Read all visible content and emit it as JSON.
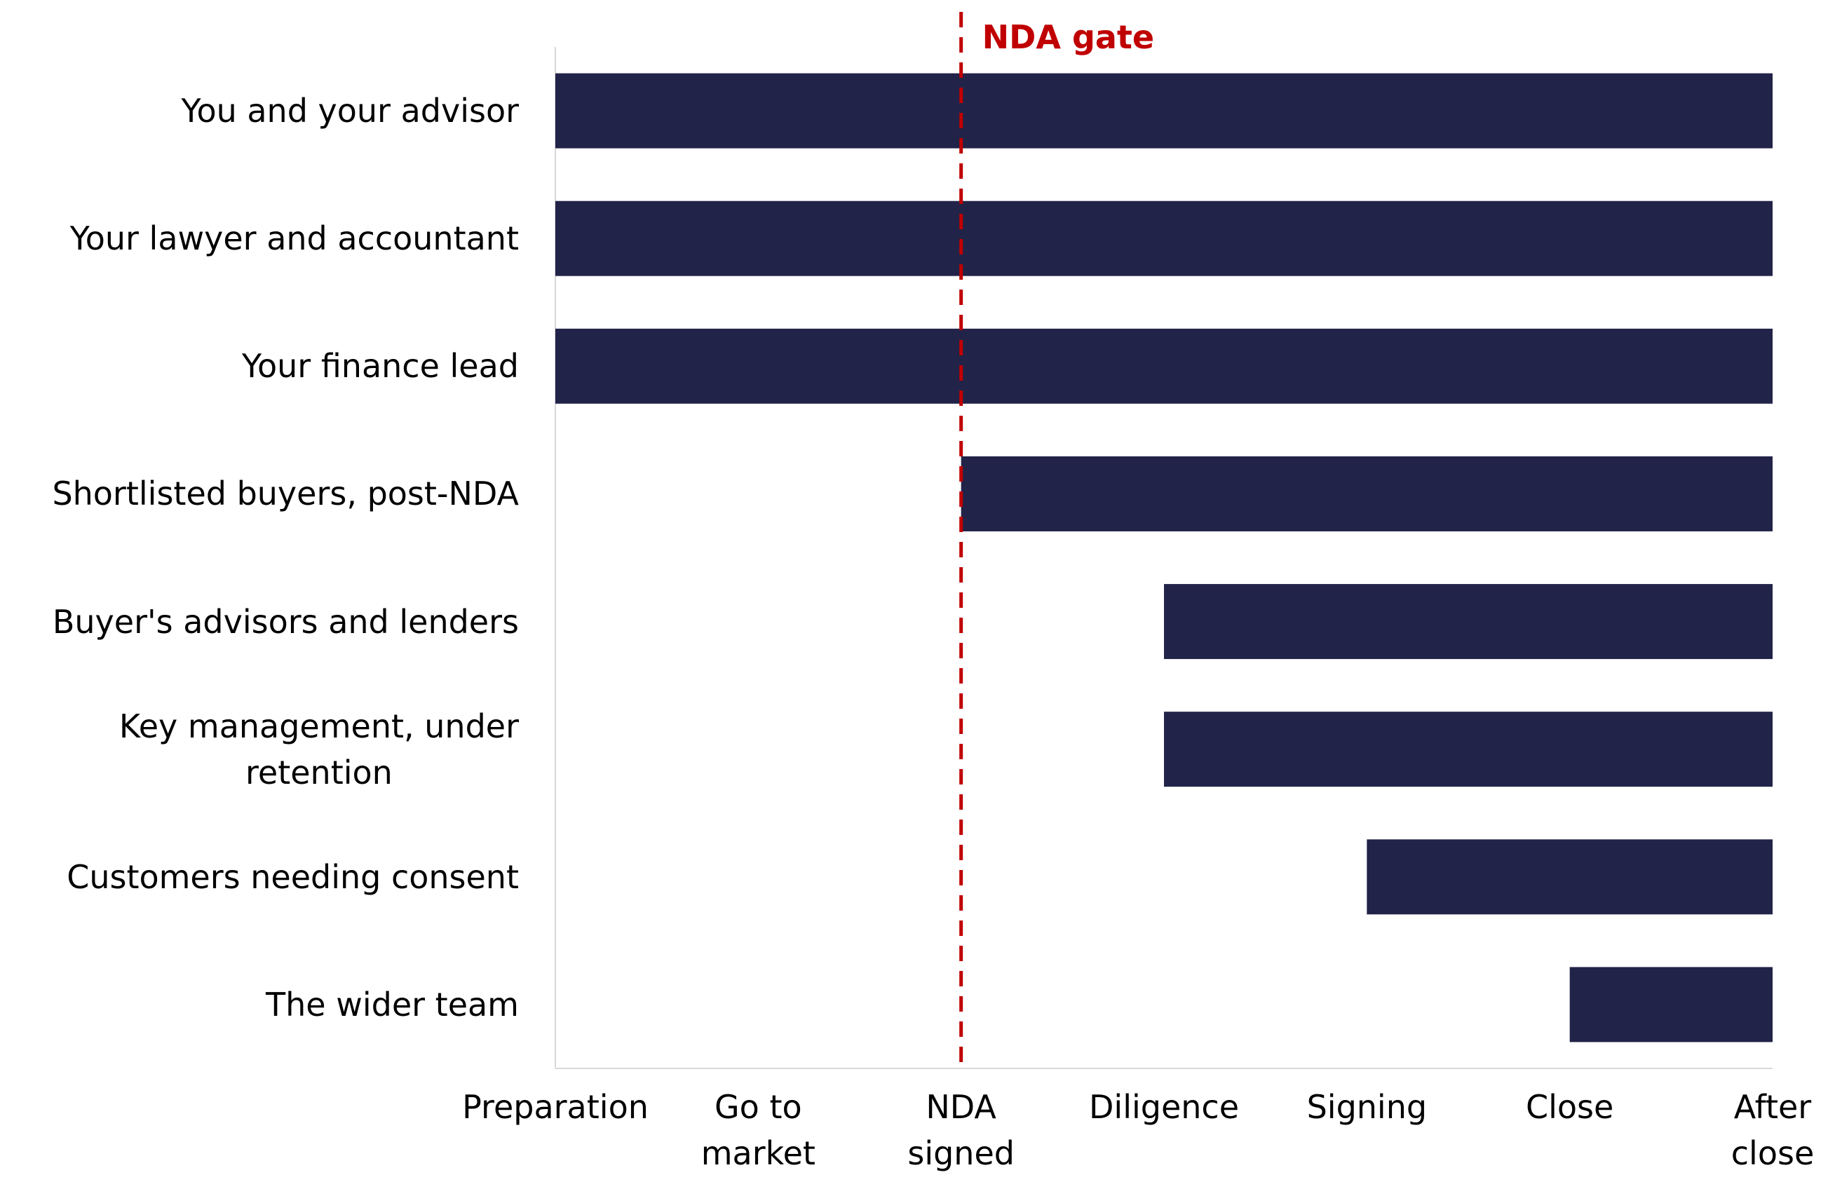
{
  "chart_data": {
    "type": "gantt",
    "categories": [
      "You and your advisor",
      "Your lawyer and accountant",
      "Your finance lead",
      "Shortlisted buyers, post-NDA",
      "Buyer's advisors and lenders",
      "Key management, under\nretention",
      "Customers needing consent",
      "The wider team"
    ],
    "start": [
      0,
      0,
      0,
      2,
      3,
      3,
      4,
      5
    ],
    "end": [
      6,
      6,
      6,
      6,
      6,
      6,
      6,
      6
    ],
    "color": "#222348",
    "xlim": [
      0,
      6
    ],
    "xticks": [
      {
        "value": 0,
        "label": "Preparation"
      },
      {
        "value": 1,
        "label": "Go to\nmarket"
      },
      {
        "value": 2,
        "label": "NDA\nsigned"
      },
      {
        "value": 3,
        "label": "Diligence"
      },
      {
        "value": 4,
        "label": "Signing"
      },
      {
        "value": 5,
        "label": "Close"
      },
      {
        "value": 6,
        "label": "After\nclose"
      }
    ],
    "annotation": {
      "text": "NDA gate",
      "x": 2,
      "color": "#c00000"
    }
  }
}
